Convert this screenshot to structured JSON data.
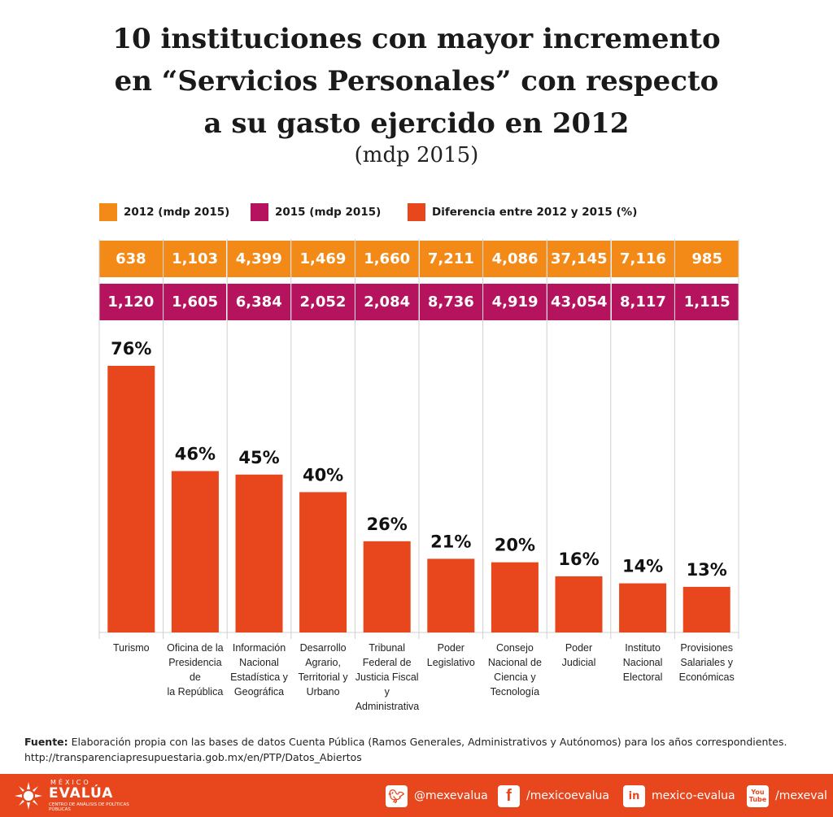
{
  "title_lines": [
    "10 instituciones con mayor incremento",
    "en “Servicios Personales” con respecto",
    "a su gasto ejercido en 2012"
  ],
  "subtitle": "(mdp 2015)",
  "legend": [
    {
      "label": "2012 (mdp 2015)",
      "color": "#f38a17"
    },
    {
      "label": "2015 (mdp 2015)",
      "color": "#b5135d"
    },
    {
      "label": "Diferencia entre 2012 y 2015 (%)",
      "color": "#e8461d"
    }
  ],
  "chart_data": {
    "type": "bar",
    "title": "10 instituciones con mayor incremento en “Servicios Personales” con respecto a su gasto ejercido en 2012",
    "subtitle": "(mdp 2015)",
    "categories": [
      [
        "Turismo"
      ],
      [
        "Oficina de la",
        "Presidencia de",
        "la República"
      ],
      [
        "Información",
        "Nacional",
        "Estadística y",
        "Geográfica"
      ],
      [
        "Desarrollo",
        "Agrario,",
        "Territorial y",
        "Urbano"
      ],
      [
        "Tribunal",
        "Federal de",
        "Justicia Fiscal y",
        "Administrativa"
      ],
      [
        "Poder",
        "Legislativo"
      ],
      [
        "Consejo",
        "Nacional de",
        "Ciencia y",
        "Tecnología"
      ],
      [
        "Poder",
        "Judicial"
      ],
      [
        "Instituto",
        "Nacional",
        "Electoral"
      ],
      [
        "Provisiones",
        "Salariales y",
        "Económicas"
      ]
    ],
    "series": [
      {
        "name": "2012 (mdp 2015)",
        "labels": [
          "638",
          "1,103",
          "4,399",
          "1,469",
          "1,660",
          "7,211",
          "4,086",
          "37,145",
          "7,116",
          "985"
        ]
      },
      {
        "name": "2015 (mdp 2015)",
        "labels": [
          "1,120",
          "1,605",
          "6,384",
          "2,052",
          "2,084",
          "8,736",
          "4,919",
          "43,054",
          "8,117",
          "1,115"
        ]
      },
      {
        "name": "Diferencia entre 2012 y 2015 (%)",
        "values": [
          76,
          46,
          45,
          40,
          26,
          21,
          20,
          16,
          14,
          13
        ],
        "labels": [
          "76%",
          "46%",
          "45%",
          "40%",
          "26%",
          "21%",
          "20%",
          "16%",
          "14%",
          "13%"
        ]
      }
    ],
    "ylim": [
      0,
      100
    ],
    "bar_color": "#e8461d"
  },
  "source": {
    "label": "Fuente:",
    "text": "Elaboración propia con las bases de datos Cuenta Pública (Ramos Generales, Administrativos y Autónomos) para los años correspondientes.",
    "url": "http://transparenciapresupuestaria.gob.mx/en/PTP/Datos_Abiertos"
  },
  "footer": {
    "logo_top": "MÉXICO",
    "logo_main": "EVALÚA",
    "logo_sub": "CENTRO DE ANÁLISIS DE POLÍTICAS PÚBLICAS",
    "twitter": "@mexevalua",
    "facebook": "/mexicoevalua",
    "linkedin": "mexico-evalua",
    "youtube": "/mexeval"
  }
}
